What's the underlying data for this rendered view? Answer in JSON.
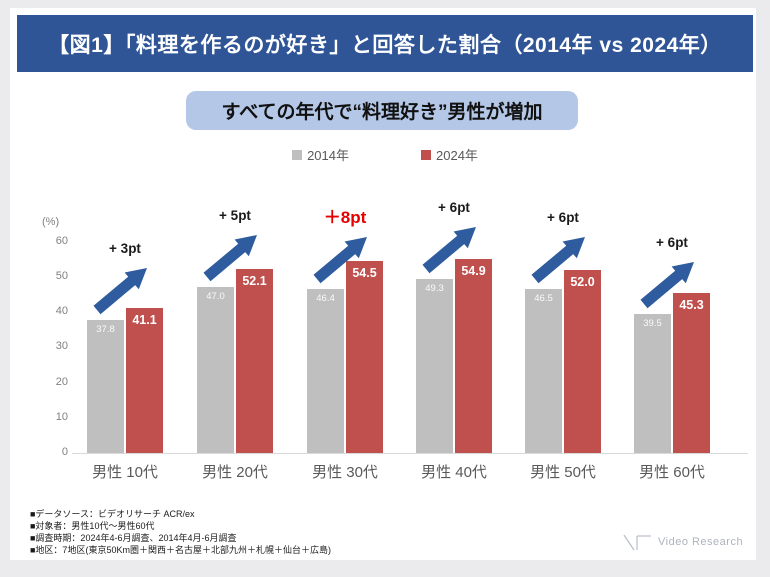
{
  "header": {
    "title": "【図1】「料理を作るのが好き」と回答した割合（2014年 vs 2024年）"
  },
  "callout": {
    "text": "すべての年代で“料理好き”男性が増加"
  },
  "legend": {
    "items": [
      {
        "label": "2014年",
        "color": "#BFBFBF"
      },
      {
        "label": "2024年",
        "color": "#C0504D"
      }
    ]
  },
  "chart_data": {
    "type": "bar",
    "title": "「料理を作るのが好き」と回答した割合",
    "categories": [
      "男性 10代",
      "男性 20代",
      "男性 30代",
      "男性 40代",
      "男性 50代",
      "男性 60代"
    ],
    "series": [
      {
        "name": "2014年",
        "color": "#BFBFBF",
        "values": [
          37.8,
          47.0,
          46.4,
          49.3,
          46.5,
          39.5
        ]
      },
      {
        "name": "2024年",
        "color": "#C0504D",
        "values": [
          41.1,
          52.1,
          54.5,
          54.9,
          52.0,
          45.3
        ]
      }
    ],
    "annotations": {
      "diff_labels": [
        "+ 3pt",
        "+ 5pt",
        "＋8pt",
        "+ 6pt",
        "+ 6pt",
        "+ 6pt"
      ],
      "highlight_index": 2
    },
    "ylabel": "(%)",
    "yticks": [
      0,
      10,
      20,
      30,
      40,
      50,
      60
    ],
    "ylim": [
      0,
      60
    ],
    "grid": false,
    "legend_position": "top"
  },
  "colors": {
    "banner_blue": "#2F5597",
    "callout_blue": "#B4C7E7",
    "bar_gray": "#BFBFBF",
    "bar_red": "#C0504D",
    "arrow_blue": "#2E5C9E",
    "highlight_red": "#E60000"
  },
  "footer": {
    "notes": [
      "■データソース：ビデオリサーチ ACR/ex",
      "■対象者：男性10代～男性60代",
      "■調査時期：2024年4-6月調査、2014年4月-6月調査",
      "■地区：7地区(東京50Km圏＋関西＋名古屋＋北部九州＋札幌＋仙台＋広島)"
    ]
  },
  "logo": {
    "text": "Video Research"
  }
}
